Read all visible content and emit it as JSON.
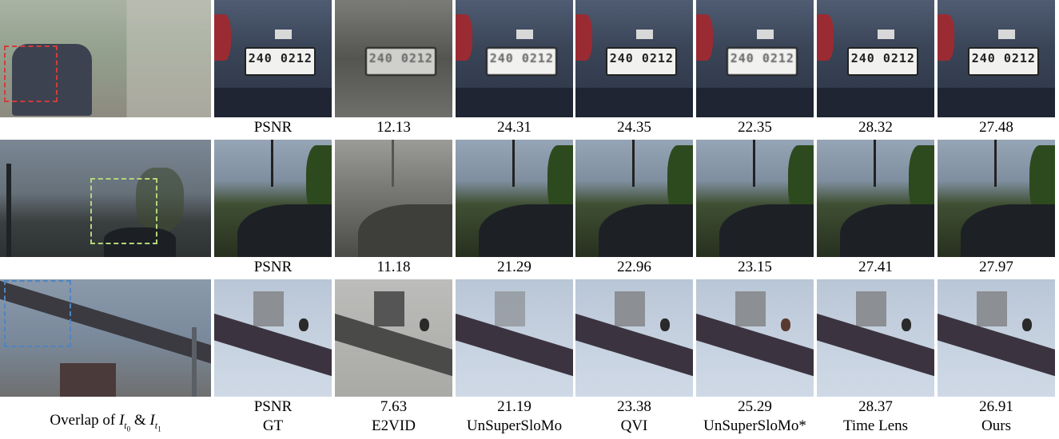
{
  "rows": [
    {
      "psnr_label": "PSNR",
      "psnr_values": [
        "12.13",
        "24.31",
        "24.35",
        "22.35",
        "28.32",
        "27.48"
      ],
      "plate_text": "240 0212"
    },
    {
      "psnr_label": "PSNR",
      "psnr_values": [
        "11.18",
        "21.29",
        "22.96",
        "23.15",
        "27.41",
        "27.97"
      ]
    },
    {
      "psnr_label": "PSNR",
      "psnr_values": [
        "7.63",
        "21.19",
        "23.38",
        "25.29",
        "28.37",
        "26.91"
      ]
    }
  ],
  "column_labels": [
    "GT",
    "E2VID",
    "UnSuperSloMo",
    "QVI",
    "UnSuperSloMo*",
    "Time Lens",
    "Ours"
  ],
  "overlap_caption": {
    "prefix": "Overlap of ",
    "conjunction": " & "
  },
  "box_colors": [
    "#d23c3c",
    "#b6d67c",
    "#4f84c1"
  ]
}
